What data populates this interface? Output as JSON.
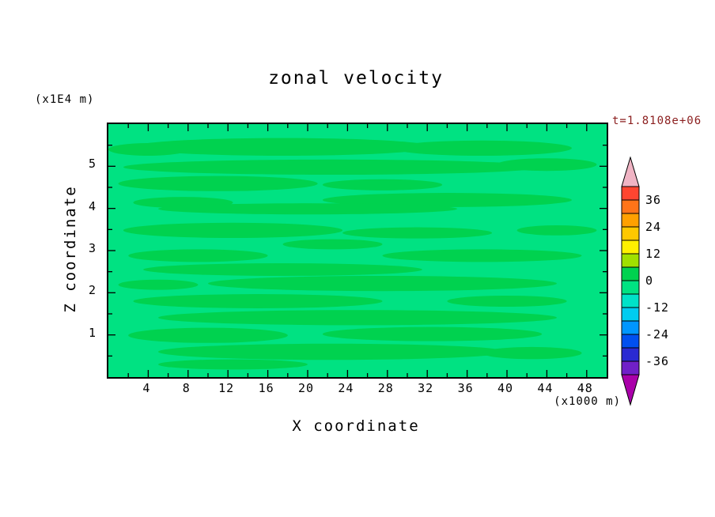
{
  "chart": {
    "title": "zonal velocity",
    "xlabel": "X coordinate",
    "ylabel": "Z coordinate",
    "x_unit": "(x1000 m)",
    "y_unit": "(x1E4 m)",
    "time_label": "t=1.8108e+06",
    "time_label_color": "#8b1e1e"
  },
  "chart_data": {
    "type": "filled_contour",
    "title": "zonal velocity",
    "xlabel": "X coordinate",
    "x_unit": "(x1000 m)",
    "ylabel": "Z coordinate",
    "y_unit": "(x1E4 m)",
    "time_annotation": "t=1.8108e+06",
    "x_range": [
      0,
      50
    ],
    "y_range": [
      0,
      6
    ],
    "x_ticks": [
      4,
      8,
      12,
      16,
      20,
      24,
      28,
      32,
      36,
      40,
      44,
      48
    ],
    "x_minor_step": 2,
    "y_ticks": [
      1,
      2,
      3,
      4,
      5
    ],
    "y_minor_step": 0.5,
    "grid": false,
    "legend_position": "right-colorbar",
    "contour_interval": 6,
    "contour_levels": [
      -42,
      -36,
      -30,
      -24,
      -18,
      -12,
      -6,
      0,
      6,
      12,
      18,
      24,
      30,
      36,
      42
    ],
    "colorbar": {
      "tick_labels": [
        36,
        24,
        12,
        0,
        -12,
        -24,
        -36
      ],
      "segment_colors_top_to_bottom": [
        "#ff4530",
        "#ff7418",
        "#ffa000",
        "#ffc800",
        "#fff000",
        "#a0e000",
        "#00d24f",
        "#00e282",
        "#00e2c8",
        "#00ccf0",
        "#0096ff",
        "#0050f0",
        "#2a2ad2",
        "#7020c8"
      ],
      "over_arrow_color": "#f0b4c4",
      "under_arrow_color": "#aa00aa"
    },
    "field": {
      "description": "zonal velocity near zero everywhere: background band -6..0, horizontal streaks 0..6",
      "base_color": "#00e282",
      "streak_color": "#00d24f",
      "streaks": [
        [
          0.35,
          0.09,
          0.3,
          0.035
        ],
        [
          0.75,
          0.095,
          0.18,
          0.03
        ],
        [
          0.08,
          0.1,
          0.08,
          0.025
        ],
        [
          0.45,
          0.17,
          0.42,
          0.03
        ],
        [
          0.88,
          0.16,
          0.1,
          0.025
        ],
        [
          0.22,
          0.235,
          0.2,
          0.03
        ],
        [
          0.55,
          0.24,
          0.12,
          0.022
        ],
        [
          0.68,
          0.3,
          0.25,
          0.028
        ],
        [
          0.15,
          0.31,
          0.1,
          0.022
        ],
        [
          0.4,
          0.335,
          0.3,
          0.022
        ],
        [
          0.25,
          0.42,
          0.22,
          0.03
        ],
        [
          0.62,
          0.43,
          0.15,
          0.022
        ],
        [
          0.9,
          0.42,
          0.08,
          0.02
        ],
        [
          0.45,
          0.475,
          0.1,
          0.02
        ],
        [
          0.18,
          0.52,
          0.14,
          0.025
        ],
        [
          0.75,
          0.52,
          0.2,
          0.025
        ],
        [
          0.35,
          0.575,
          0.28,
          0.025
        ],
        [
          0.55,
          0.63,
          0.35,
          0.03
        ],
        [
          0.1,
          0.635,
          0.08,
          0.02
        ],
        [
          0.3,
          0.7,
          0.25,
          0.028
        ],
        [
          0.8,
          0.7,
          0.12,
          0.022
        ],
        [
          0.5,
          0.765,
          0.4,
          0.03
        ],
        [
          0.2,
          0.835,
          0.16,
          0.03
        ],
        [
          0.65,
          0.83,
          0.22,
          0.028
        ],
        [
          0.45,
          0.9,
          0.35,
          0.032
        ],
        [
          0.85,
          0.905,
          0.1,
          0.024
        ],
        [
          0.25,
          0.95,
          0.15,
          0.02
        ]
      ]
    }
  }
}
